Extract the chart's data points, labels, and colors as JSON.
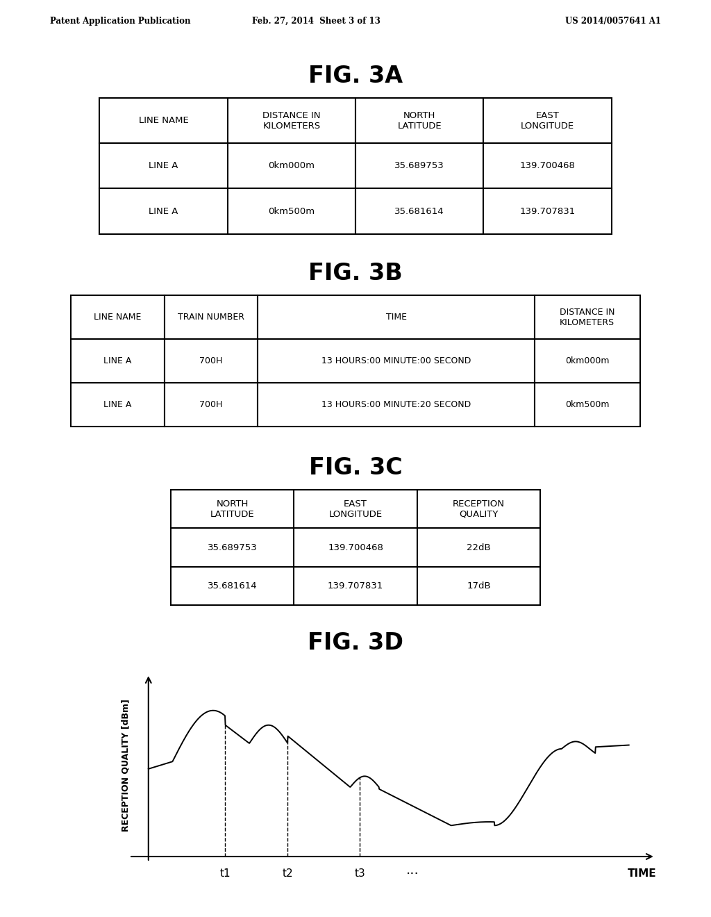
{
  "bg_color": "#ffffff",
  "text_color": "#000000",
  "header_text": {
    "left": "Patent Application Publication",
    "center": "Feb. 27, 2014  Sheet 3 of 13",
    "right": "US 2014/0057641 A1"
  },
  "fig3a_title": "FIG. 3A",
  "fig3a_headers": [
    "LINE NAME",
    "DISTANCE IN\nKILOMETERS",
    "NORTH\nLATITUDE",
    "EAST\nLONGITUDE"
  ],
  "fig3a_rows": [
    [
      "LINE A",
      "0km000m",
      "35.689753",
      "139.700468"
    ],
    [
      "LINE A",
      "0km500m",
      "35.681614",
      "139.707831"
    ]
  ],
  "fig3b_title": "FIG. 3B",
  "fig3b_headers": [
    "LINE NAME",
    "TRAIN NUMBER",
    "TIME",
    "DISTANCE IN\nKILOMETERS"
  ],
  "fig3b_rows": [
    [
      "LINE A",
      "700H",
      "13 HOURS:00 MINUTE:00 SECOND",
      "0km000m"
    ],
    [
      "LINE A",
      "700H",
      "13 HOURS:00 MINUTE:20 SECOND",
      "0km500m"
    ]
  ],
  "fig3c_title": "FIG. 3C",
  "fig3c_headers": [
    "NORTH\nLATITUDE",
    "EAST\nLONGITUDE",
    "RECEPTION\nQUALITY"
  ],
  "fig3c_rows": [
    [
      "35.689753",
      "139.700468",
      "22dB"
    ],
    [
      "35.681614",
      "139.707831",
      "17dB"
    ]
  ],
  "fig3d_title": "FIG. 3D",
  "fig3d_ylabel": "RECEPTION QUALITY [dBm]",
  "fig3d_xlabel": "TIME",
  "fig3d_ticks": [
    "t1",
    "t2",
    "t3",
    "..."
  ]
}
